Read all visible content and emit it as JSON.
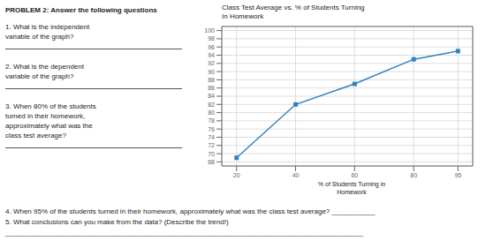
{
  "chart_data": {
    "type": "line",
    "title": "Class Test Average vs. % of Students Turning\nIn Homework",
    "xlabel": "% of Students Turning in\nHomework",
    "x": [
      20,
      40,
      60,
      80,
      95
    ],
    "values": [
      69,
      82,
      87,
      93,
      95
    ],
    "xlim": [
      15,
      100
    ],
    "ylim": [
      67,
      101
    ],
    "xticks": [
      20,
      40,
      60,
      80,
      95
    ],
    "yticks": [
      68,
      70,
      72,
      74,
      76,
      78,
      80,
      82,
      84,
      86,
      88,
      90,
      92,
      94,
      96,
      98,
      100
    ],
    "grid": true,
    "marker": "square",
    "annotations": [
      "PROBLEM 2: Answer the following questions",
      "1. What is the independent",
      "variable of the graph?",
      "2. What is the dependent",
      "variable of the graph?",
      "3. When 80% of the students",
      "turned in their homework,",
      "approximately what was the",
      "class test average?",
      "4. When 95% of the students turned in their homework, approximately what was the class test average? ___________",
      "5. What conclusions can you make from the data? (Describe the trend!)",
      "___________________________________________________________________________________________"
    ]
  }
}
